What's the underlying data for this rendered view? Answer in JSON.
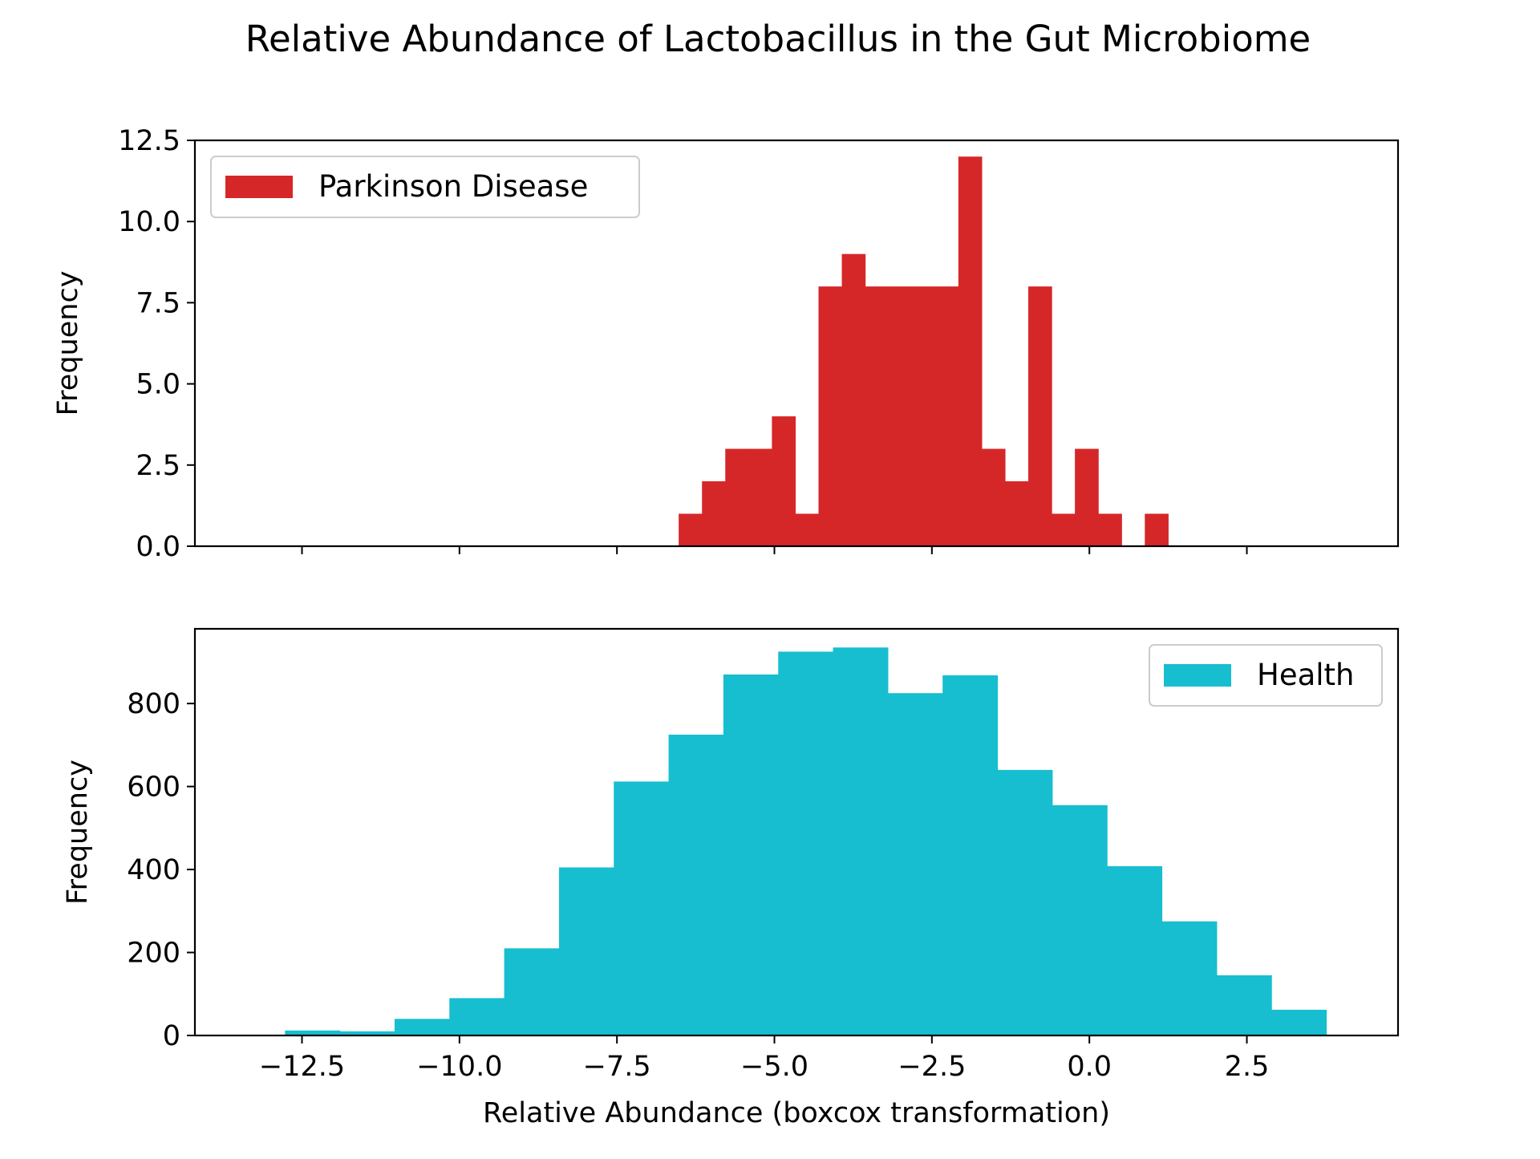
{
  "title": "Relative Abundance of Lactobacillus in the Gut Microbiome",
  "chart_data": [
    {
      "type": "bar",
      "subtype": "histogram",
      "series": [
        {
          "name": "Parkinson Disease",
          "color": "#d62728",
          "bins": [
            {
              "x0": -6.52,
              "x1": -6.15,
              "value": 1
            },
            {
              "x0": -6.15,
              "x1": -5.78,
              "value": 2
            },
            {
              "x0": -5.78,
              "x1": -5.41,
              "value": 3
            },
            {
              "x0": -5.41,
              "x1": -5.04,
              "value": 3
            },
            {
              "x0": -5.04,
              "x1": -4.67,
              "value": 4
            },
            {
              "x0": -4.67,
              "x1": -4.3,
              "value": 1
            },
            {
              "x0": -4.3,
              "x1": -3.93,
              "value": 8
            },
            {
              "x0": -3.93,
              "x1": -3.56,
              "value": 9
            },
            {
              "x0": -3.56,
              "x1": -3.19,
              "value": 8
            },
            {
              "x0": -3.19,
              "x1": -2.82,
              "value": 8
            },
            {
              "x0": -2.82,
              "x1": -2.45,
              "value": 8
            },
            {
              "x0": -2.45,
              "x1": -2.08,
              "value": 8
            },
            {
              "x0": -2.08,
              "x1": -1.71,
              "value": 12
            },
            {
              "x0": -1.71,
              "x1": -1.34,
              "value": 3
            },
            {
              "x0": -1.34,
              "x1": -0.97,
              "value": 2
            },
            {
              "x0": -0.97,
              "x1": -0.6,
              "value": 8
            },
            {
              "x0": -0.6,
              "x1": -0.23,
              "value": 1
            },
            {
              "x0": -0.23,
              "x1": 0.14,
              "value": 3
            },
            {
              "x0": 0.14,
              "x1": 0.51,
              "value": 1
            },
            {
              "x0": 0.51,
              "x1": 0.88,
              "value": 0
            },
            {
              "x0": 0.88,
              "x1": 1.25,
              "value": 1
            }
          ]
        }
      ],
      "xlim": [
        -14.2,
        4.9
      ],
      "ylim": [
        0,
        12.5
      ],
      "yticks": [
        0.0,
        2.5,
        5.0,
        7.5,
        10.0,
        12.5
      ],
      "ytick_labels": [
        "0.0",
        "2.5",
        "5.0",
        "7.5",
        "10.0",
        "12.5"
      ],
      "xticks": [
        -12.5,
        -10.0,
        -7.5,
        -5.0,
        -2.5,
        0.0,
        2.5
      ],
      "ylabel": "Frequency",
      "xlabel": "",
      "legend": "top-left",
      "grid": false
    },
    {
      "type": "bar",
      "subtype": "histogram",
      "series": [
        {
          "name": "Health",
          "color": "#17becf",
          "bins": [
            {
              "x0": -12.77,
              "x1": -11.9,
              "value": 12
            },
            {
              "x0": -11.9,
              "x1": -11.03,
              "value": 10
            },
            {
              "x0": -11.03,
              "x1": -10.16,
              "value": 40
            },
            {
              "x0": -10.16,
              "x1": -9.29,
              "value": 90
            },
            {
              "x0": -9.29,
              "x1": -8.42,
              "value": 210
            },
            {
              "x0": -8.42,
              "x1": -7.55,
              "value": 405
            },
            {
              "x0": -7.55,
              "x1": -6.68,
              "value": 612
            },
            {
              "x0": -6.68,
              "x1": -5.81,
              "value": 725
            },
            {
              "x0": -5.81,
              "x1": -4.94,
              "value": 870
            },
            {
              "x0": -4.94,
              "x1": -4.07,
              "value": 925
            },
            {
              "x0": -4.07,
              "x1": -3.2,
              "value": 935
            },
            {
              "x0": -3.2,
              "x1": -2.33,
              "value": 825
            },
            {
              "x0": -2.33,
              "x1": -1.46,
              "value": 868
            },
            {
              "x0": -1.46,
              "x1": -0.59,
              "value": 640
            },
            {
              "x0": -0.59,
              "x1": 0.28,
              "value": 555
            },
            {
              "x0": 0.28,
              "x1": 1.15,
              "value": 408
            },
            {
              "x0": 1.15,
              "x1": 2.02,
              "value": 275
            },
            {
              "x0": 2.02,
              "x1": 2.89,
              "value": 145
            },
            {
              "x0": 2.89,
              "x1": 3.76,
              "value": 62
            }
          ]
        }
      ],
      "xlim": [
        -14.2,
        4.9
      ],
      "ylim": [
        0,
        980
      ],
      "yticks": [
        0,
        200,
        400,
        600,
        800
      ],
      "ytick_labels": [
        "0",
        "200",
        "400",
        "600",
        "800"
      ],
      "xticks": [
        -12.5,
        -10.0,
        -7.5,
        -5.0,
        -2.5,
        0.0,
        2.5
      ],
      "xtick_labels": [
        "−12.5",
        "−10.0",
        "−7.5",
        "−5.0",
        "−2.5",
        "0.0",
        "2.5"
      ],
      "ylabel": "Frequency",
      "xlabel": "Relative Abundance (boxcox transformation)",
      "legend": "top-right",
      "grid": false
    }
  ]
}
